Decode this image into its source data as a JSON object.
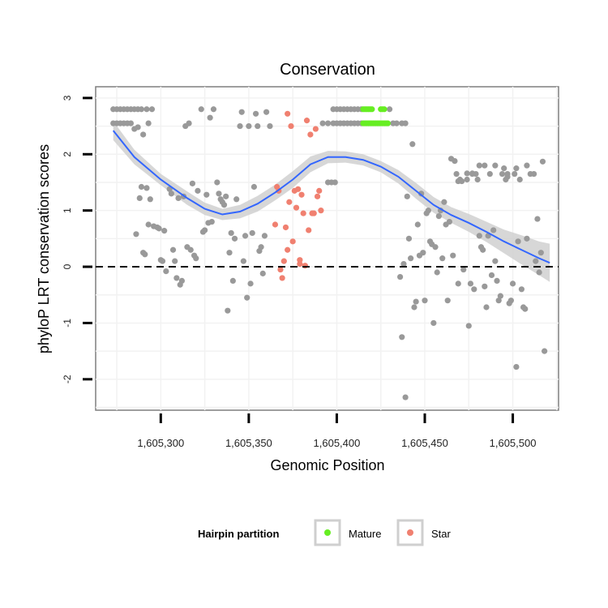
{
  "chart_data": {
    "type": "scatter",
    "title": "Conservation",
    "xlabel": "Genomic Position",
    "ylabel": "phyloP LRT conservation scores",
    "xlim": [
      1605263,
      1605526
    ],
    "ylim": [
      -2.55,
      3.2
    ],
    "x_ticks": [
      1605300,
      1605350,
      1605400,
      1605450,
      1605500
    ],
    "x_tick_labels": [
      "1,605,300",
      "1,605,350",
      "1,605,400",
      "1,605,450",
      "1,605,500"
    ],
    "y_ticks": [
      -2,
      -1,
      0,
      1,
      2,
      3
    ],
    "y_tick_labels": [
      "-2",
      "-1",
      "0",
      "1",
      "2",
      "3"
    ],
    "reference_line": {
      "y": 0,
      "style": "dashed"
    },
    "legend": {
      "title": "Hairpin partition",
      "entries": [
        {
          "label": "Mature",
          "color": "#66ee22"
        },
        {
          "label": "Star",
          "color": "#f08070"
        }
      ]
    },
    "colors": {
      "other": "#999999",
      "smooth": "#3366ff",
      "band": "#d0d0d0"
    },
    "series": [
      {
        "name": "Other",
        "points": [
          [
            1605273,
            2.8
          ],
          [
            1605275,
            2.8
          ],
          [
            1605277,
            2.8
          ],
          [
            1605279,
            2.8
          ],
          [
            1605281,
            2.8
          ],
          [
            1605283,
            2.8
          ],
          [
            1605285,
            2.8
          ],
          [
            1605287,
            2.8
          ],
          [
            1605289,
            2.8
          ],
          [
            1605273,
            2.55
          ],
          [
            1605275,
            2.55
          ],
          [
            1605277,
            2.55
          ],
          [
            1605279,
            2.55
          ],
          [
            1605281,
            2.55
          ],
          [
            1605283,
            2.55
          ],
          [
            1605285,
            2.45
          ],
          [
            1605287,
            2.48
          ],
          [
            1605290,
            2.35
          ],
          [
            1605292,
            2.8
          ],
          [
            1605293,
            2.55
          ],
          [
            1605295,
            2.8
          ],
          [
            1605286,
            0.58
          ],
          [
            1605288,
            1.22
          ],
          [
            1605289,
            1.42
          ],
          [
            1605290,
            0.25
          ],
          [
            1605291,
            0.22
          ],
          [
            1605292,
            1.4
          ],
          [
            1605293,
            0.75
          ],
          [
            1605294,
            1.2
          ],
          [
            1605296,
            0.72
          ],
          [
            1605298,
            0.7
          ],
          [
            1605299,
            0.68
          ],
          [
            1605300,
            0.12
          ],
          [
            1605301,
            0.1
          ],
          [
            1605302,
            0.64
          ],
          [
            1605303,
            -0.08
          ],
          [
            1605305,
            1.38
          ],
          [
            1605306,
            1.3
          ],
          [
            1605307,
            0.3
          ],
          [
            1605308,
            0.1
          ],
          [
            1605309,
            -0.2
          ],
          [
            1605310,
            1.22
          ],
          [
            1605311,
            -0.32
          ],
          [
            1605312,
            -0.25
          ],
          [
            1605313,
            1.25
          ],
          [
            1605314,
            2.5
          ],
          [
            1605315,
            0.35
          ],
          [
            1605316,
            2.55
          ],
          [
            1605317,
            0.3
          ],
          [
            1605318,
            1.48
          ],
          [
            1605319,
            0.2
          ],
          [
            1605320,
            0.15
          ],
          [
            1605321,
            1.35
          ],
          [
            1605323,
            2.8
          ],
          [
            1605324,
            0.62
          ],
          [
            1605325,
            0.65
          ],
          [
            1605326,
            1.28
          ],
          [
            1605327,
            0.78
          ],
          [
            1605328,
            2.65
          ],
          [
            1605329,
            0.8
          ],
          [
            1605330,
            2.8
          ],
          [
            1605332,
            1.5
          ],
          [
            1605333,
            1.3
          ],
          [
            1605334,
            1.2
          ],
          [
            1605335,
            1.15
          ],
          [
            1605336,
            1.1
          ],
          [
            1605337,
            1.25
          ],
          [
            1605338,
            -0.78
          ],
          [
            1605339,
            0.25
          ],
          [
            1605340,
            0.6
          ],
          [
            1605341,
            -0.25
          ],
          [
            1605342,
            0.5
          ],
          [
            1605343,
            1.2
          ],
          [
            1605345,
            2.5
          ],
          [
            1605346,
            2.75
          ],
          [
            1605347,
            0.1
          ],
          [
            1605348,
            0.55
          ],
          [
            1605349,
            -0.55
          ],
          [
            1605350,
            2.5
          ],
          [
            1605351,
            -0.3
          ],
          [
            1605352,
            0.6
          ],
          [
            1605353,
            1.42
          ],
          [
            1605354,
            2.72
          ],
          [
            1605355,
            2.5
          ],
          [
            1605356,
            0.28
          ],
          [
            1605357,
            0.35
          ],
          [
            1605358,
            -0.12
          ],
          [
            1605359,
            0.55
          ],
          [
            1605360,
            2.75
          ],
          [
            1605362,
            2.5
          ],
          [
            1605392,
            2.55
          ],
          [
            1605395,
            2.55
          ],
          [
            1605398,
            2.55
          ],
          [
            1605400,
            2.55
          ],
          [
            1605402,
            2.55
          ],
          [
            1605404,
            2.55
          ],
          [
            1605406,
            2.55
          ],
          [
            1605408,
            2.55
          ],
          [
            1605410,
            2.55
          ],
          [
            1605412,
            2.55
          ],
          [
            1605414,
            2.55
          ],
          [
            1605398,
            2.8
          ],
          [
            1605400,
            2.8
          ],
          [
            1605402,
            2.8
          ],
          [
            1605404,
            2.8
          ],
          [
            1605406,
            2.8
          ],
          [
            1605408,
            2.8
          ],
          [
            1605410,
            2.8
          ],
          [
            1605412,
            2.8
          ],
          [
            1605414,
            2.8
          ],
          [
            1605430,
            2.8
          ],
          [
            1605432,
            2.55
          ],
          [
            1605434,
            2.55
          ],
          [
            1605437,
            2.55
          ],
          [
            1605439,
            2.55
          ],
          [
            1605395,
            1.5
          ],
          [
            1605397,
            1.5
          ],
          [
            1605399,
            1.5
          ],
          [
            1605436,
            -0.18
          ],
          [
            1605437,
            -1.25
          ],
          [
            1605438,
            0.05
          ],
          [
            1605439,
            -2.32
          ],
          [
            1605440,
            1.25
          ],
          [
            1605441,
            0.5
          ],
          [
            1605442,
            0.15
          ],
          [
            1605443,
            2.18
          ],
          [
            1605444,
            -0.72
          ],
          [
            1605445,
            -0.62
          ],
          [
            1605446,
            0.75
          ],
          [
            1605447,
            0.2
          ],
          [
            1605448,
            1.3
          ],
          [
            1605449,
            0.25
          ],
          [
            1605450,
            -0.6
          ],
          [
            1605451,
            0.95
          ],
          [
            1605452,
            1.0
          ],
          [
            1605453,
            0.45
          ],
          [
            1605454,
            0.4
          ],
          [
            1605455,
            -1.0
          ],
          [
            1605456,
            0.35
          ],
          [
            1605457,
            -0.1
          ],
          [
            1605458,
            0.9
          ],
          [
            1605459,
            1.0
          ],
          [
            1605460,
            0.15
          ],
          [
            1605461,
            1.15
          ],
          [
            1605462,
            0.75
          ],
          [
            1605463,
            -0.6
          ],
          [
            1605464,
            0.8
          ],
          [
            1605466,
            0.2
          ],
          [
            1605468,
            1.65
          ],
          [
            1605469,
            -0.3
          ],
          [
            1605470,
            1.55
          ],
          [
            1605472,
            -0.05
          ],
          [
            1605474,
            1.55
          ],
          [
            1605475,
            -1.05
          ],
          [
            1605476,
            -0.3
          ],
          [
            1605477,
            1.65
          ],
          [
            1605478,
            -0.4
          ],
          [
            1605479,
            1.65
          ],
          [
            1605480,
            1.55
          ],
          [
            1605481,
            0.55
          ],
          [
            1605482,
            0.35
          ],
          [
            1605483,
            0.3
          ],
          [
            1605484,
            -0.35
          ],
          [
            1605485,
            -0.72
          ],
          [
            1605486,
            0.55
          ],
          [
            1605487,
            1.65
          ],
          [
            1605488,
            -0.15
          ],
          [
            1605489,
            0.65
          ],
          [
            1605490,
            0.1
          ],
          [
            1605491,
            -0.25
          ],
          [
            1605492,
            -0.6
          ],
          [
            1605493,
            -0.52
          ],
          [
            1605494,
            1.65
          ],
          [
            1605496,
            1.55
          ],
          [
            1605497,
            1.65
          ],
          [
            1605498,
            -0.65
          ],
          [
            1605499,
            -0.6
          ],
          [
            1605500,
            -0.3
          ],
          [
            1605501,
            1.65
          ],
          [
            1605502,
            -1.78
          ],
          [
            1605503,
            0.45
          ],
          [
            1605504,
            1.55
          ],
          [
            1605505,
            -0.4
          ],
          [
            1605506,
            -0.72
          ],
          [
            1605507,
            -0.75
          ],
          [
            1605508,
            0.5
          ],
          [
            1605510,
            1.65
          ],
          [
            1605512,
            1.65
          ],
          [
            1605513,
            0.1
          ],
          [
            1605514,
            0.85
          ],
          [
            1605515,
            -0.1
          ],
          [
            1605516,
            0.25
          ],
          [
            1605517,
            1.87
          ],
          [
            1605518,
            -1.5
          ],
          [
            1605465,
            1.92
          ],
          [
            1605467,
            1.88
          ],
          [
            1605469,
            1.52
          ],
          [
            1605471,
            1.52
          ],
          [
            1605474,
            1.66
          ],
          [
            1605477,
            1.66
          ],
          [
            1605481,
            1.8
          ],
          [
            1605484,
            1.8
          ],
          [
            1605490,
            1.8
          ],
          [
            1605495,
            1.75
          ],
          [
            1605497,
            1.6
          ],
          [
            1605502,
            1.75
          ],
          [
            1605508,
            1.8
          ]
        ]
      },
      {
        "name": "Mature",
        "points": [
          [
            1605415,
            2.8
          ],
          [
            1605416,
            2.8
          ],
          [
            1605417,
            2.8
          ],
          [
            1605418,
            2.8
          ],
          [
            1605419,
            2.8
          ],
          [
            1605420,
            2.8
          ],
          [
            1605425,
            2.8
          ],
          [
            1605426,
            2.8
          ],
          [
            1605427,
            2.8
          ],
          [
            1605415,
            2.55
          ],
          [
            1605416,
            2.55
          ],
          [
            1605417,
            2.55
          ],
          [
            1605418,
            2.55
          ],
          [
            1605419,
            2.55
          ],
          [
            1605420,
            2.55
          ],
          [
            1605421,
            2.55
          ],
          [
            1605422,
            2.55
          ],
          [
            1605423,
            2.55
          ],
          [
            1605424,
            2.55
          ],
          [
            1605425,
            2.55
          ],
          [
            1605426,
            2.55
          ],
          [
            1605427,
            2.55
          ],
          [
            1605428,
            2.55
          ],
          [
            1605429,
            2.55
          ]
        ]
      },
      {
        "name": "Star",
        "points": [
          [
            1605365,
            0.75
          ],
          [
            1605366,
            1.42
          ],
          [
            1605367,
            1.35
          ],
          [
            1605368,
            -0.05
          ],
          [
            1605369,
            -0.2
          ],
          [
            1605370,
            0.1
          ],
          [
            1605371,
            0.7
          ],
          [
            1605372,
            0.3
          ],
          [
            1605372,
            2.72
          ],
          [
            1605373,
            1.15
          ],
          [
            1605374,
            2.5
          ],
          [
            1605375,
            0.45
          ],
          [
            1605376,
            1.35
          ],
          [
            1605377,
            1.05
          ],
          [
            1605378,
            1.38
          ],
          [
            1605379,
            0.05
          ],
          [
            1605379,
            0.12
          ],
          [
            1605380,
            1.28
          ],
          [
            1605381,
            0.95
          ],
          [
            1605382,
            0.02
          ],
          [
            1605383,
            2.6
          ],
          [
            1605384,
            0.65
          ],
          [
            1605385,
            2.35
          ],
          [
            1605386,
            0.95
          ],
          [
            1605387,
            0.95
          ],
          [
            1605388,
            2.45
          ],
          [
            1605389,
            1.25
          ],
          [
            1605390,
            1.35
          ],
          [
            1605391,
            1.0
          ]
        ]
      }
    ],
    "smooth": {
      "x": [
        1605273,
        1605285,
        1605300,
        1605315,
        1605325,
        1605335,
        1605345,
        1605355,
        1605365,
        1605375,
        1605385,
        1605395,
        1605405,
        1605415,
        1605425,
        1605435,
        1605445,
        1605455,
        1605465,
        1605475,
        1605485,
        1605495,
        1605505,
        1605515,
        1605521
      ],
      "y": [
        2.42,
        1.95,
        1.55,
        1.22,
        1.03,
        0.93,
        0.98,
        1.12,
        1.32,
        1.55,
        1.82,
        1.95,
        1.95,
        1.9,
        1.78,
        1.6,
        1.35,
        1.1,
        0.92,
        0.78,
        0.62,
        0.45,
        0.3,
        0.15,
        0.07
      ],
      "lower": [
        2.25,
        1.82,
        1.45,
        1.1,
        0.92,
        0.83,
        0.86,
        0.98,
        1.18,
        1.4,
        1.68,
        1.84,
        1.85,
        1.8,
        1.68,
        1.48,
        1.21,
        0.96,
        0.78,
        0.62,
        0.44,
        0.24,
        0.04,
        -0.15,
        -0.27
      ],
      "upper": [
        2.59,
        2.08,
        1.65,
        1.34,
        1.14,
        1.03,
        1.1,
        1.26,
        1.46,
        1.7,
        1.96,
        2.06,
        2.05,
        2.0,
        1.88,
        1.72,
        1.49,
        1.24,
        1.06,
        0.94,
        0.8,
        0.66,
        0.56,
        0.45,
        0.41
      ]
    }
  }
}
